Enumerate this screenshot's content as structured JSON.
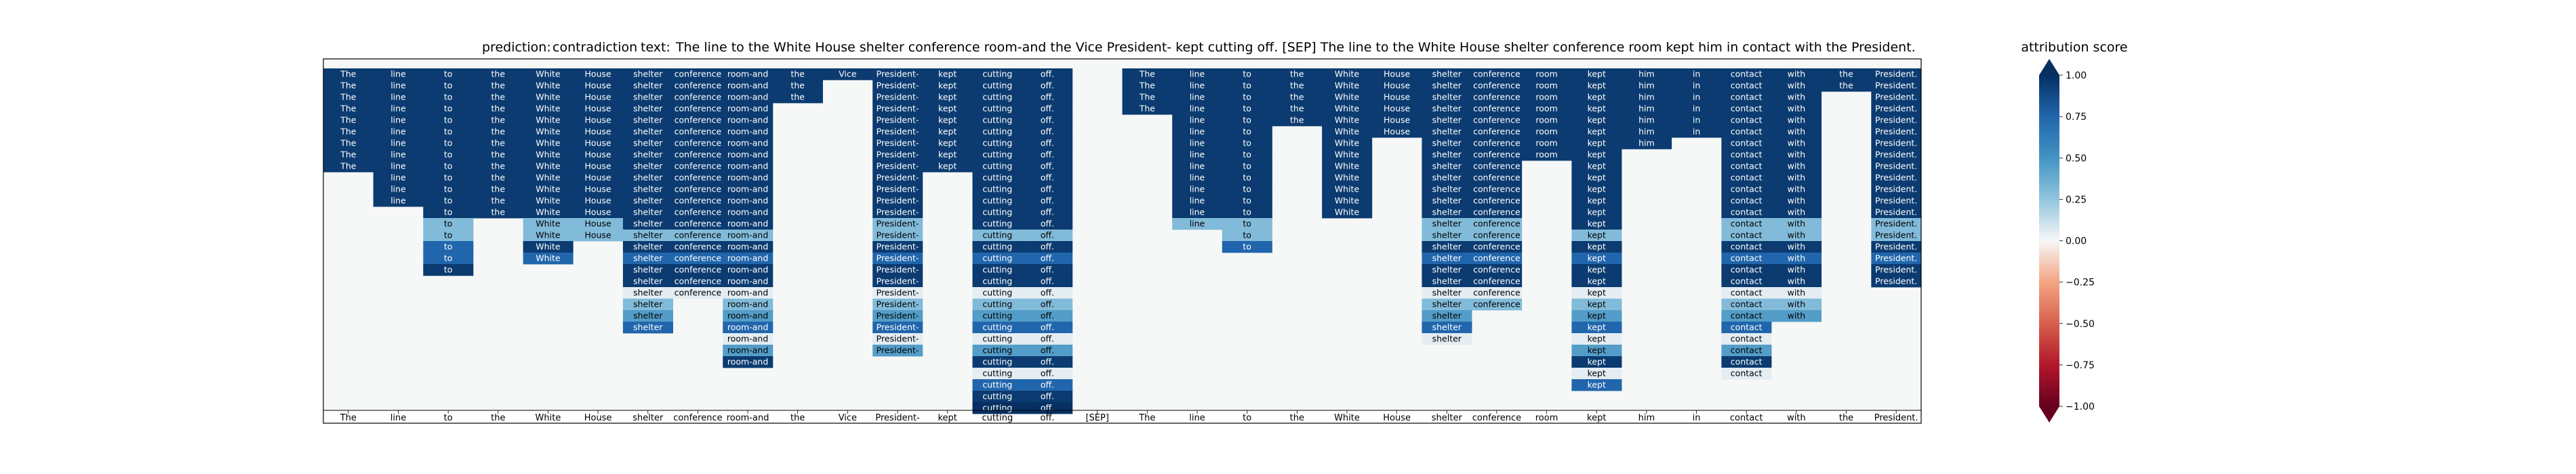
{
  "chart_data": {
    "type": "heatmap",
    "title": {
      "prediction_label": "prediction:",
      "prediction_value": "contradiction",
      "text_label": "text:",
      "text_value": "The line to the White House shelter conference room-and the Vice President- kept cutting off. [SEP] The line to the White House shelter conference room kept him in contact with the President."
    },
    "tokens": [
      "The",
      "line",
      "to",
      "the",
      "White",
      "House",
      "shelter",
      "conference",
      "room-and",
      "the",
      "Vice",
      "President-",
      "kept",
      "cutting",
      "off.",
      "[SEP]",
      "The",
      "line",
      "to",
      "the",
      "White",
      "House",
      "shelter",
      "conference",
      "room",
      "kept",
      "him",
      "in",
      "contact",
      "with",
      "the",
      "President."
    ],
    "matrix": [
      [
        0.95,
        0.95,
        0.95,
        0.95,
        0.95,
        0.95,
        0.95,
        0.95,
        0.95,
        0.95,
        0.95,
        0.95,
        0.95,
        0.95,
        0.95,
        null,
        0.95,
        0.95,
        0.95,
        0.95,
        0.95,
        0.95,
        0.95,
        0.95,
        0.95,
        0.95,
        0.95,
        0.95,
        0.95,
        0.95,
        0.95,
        0.95
      ],
      [
        0.95,
        0.95,
        0.95,
        0.95,
        0.95,
        0.95,
        0.95,
        0.95,
        0.95,
        0.95,
        null,
        0.95,
        0.95,
        0.95,
        0.95,
        null,
        0.95,
        0.95,
        0.95,
        0.95,
        0.95,
        0.95,
        0.95,
        0.95,
        0.95,
        0.95,
        0.95,
        0.95,
        0.95,
        0.95,
        0.95,
        0.95
      ],
      [
        0.95,
        0.95,
        0.95,
        0.95,
        0.95,
        0.95,
        0.95,
        0.95,
        0.95,
        0.95,
        null,
        0.95,
        0.95,
        0.95,
        0.95,
        null,
        0.95,
        0.95,
        0.95,
        0.95,
        0.95,
        0.95,
        0.95,
        0.95,
        0.95,
        0.95,
        0.95,
        0.95,
        0.95,
        0.95,
        null,
        0.95
      ],
      [
        0.95,
        0.95,
        0.95,
        0.95,
        0.95,
        0.95,
        0.95,
        0.95,
        0.95,
        null,
        null,
        0.95,
        0.95,
        0.95,
        0.95,
        null,
        0.95,
        0.95,
        0.95,
        0.95,
        0.95,
        0.95,
        0.95,
        0.95,
        0.95,
        0.95,
        0.95,
        0.95,
        0.95,
        0.95,
        null,
        0.95
      ],
      [
        0.95,
        0.95,
        0.95,
        0.95,
        0.95,
        0.95,
        0.95,
        0.95,
        0.95,
        null,
        null,
        0.95,
        0.95,
        0.95,
        0.95,
        null,
        null,
        0.95,
        0.95,
        0.95,
        0.95,
        0.95,
        0.95,
        0.95,
        0.95,
        0.95,
        0.95,
        0.95,
        0.95,
        0.95,
        null,
        0.95
      ],
      [
        0.95,
        0.95,
        0.95,
        0.95,
        0.95,
        0.95,
        0.95,
        0.95,
        0.95,
        null,
        null,
        0.95,
        0.95,
        0.95,
        0.95,
        null,
        null,
        0.95,
        0.95,
        null,
        0.95,
        0.95,
        0.95,
        0.95,
        0.95,
        0.95,
        0.95,
        0.95,
        0.95,
        0.95,
        null,
        0.95
      ],
      [
        0.95,
        0.95,
        0.95,
        0.95,
        0.95,
        0.95,
        0.95,
        0.95,
        0.95,
        null,
        null,
        0.95,
        0.95,
        0.95,
        0.95,
        null,
        null,
        0.95,
        0.95,
        null,
        0.95,
        null,
        0.95,
        0.95,
        0.95,
        0.95,
        0.95,
        null,
        0.95,
        0.95,
        null,
        0.95
      ],
      [
        0.95,
        0.95,
        0.95,
        0.95,
        0.95,
        0.95,
        0.95,
        0.95,
        0.95,
        null,
        null,
        0.95,
        0.95,
        0.95,
        0.95,
        null,
        null,
        0.95,
        0.95,
        null,
        0.95,
        null,
        0.95,
        0.95,
        0.95,
        0.95,
        null,
        null,
        0.95,
        0.95,
        null,
        0.95
      ],
      [
        0.95,
        0.95,
        0.95,
        0.95,
        0.95,
        0.95,
        0.95,
        0.95,
        0.95,
        null,
        null,
        0.95,
        0.95,
        0.95,
        0.95,
        null,
        null,
        0.95,
        0.95,
        null,
        0.95,
        null,
        0.95,
        0.95,
        null,
        0.95,
        null,
        null,
        0.95,
        0.95,
        null,
        0.95
      ],
      [
        null,
        0.95,
        0.95,
        0.95,
        0.95,
        0.95,
        0.95,
        0.95,
        0.95,
        null,
        null,
        0.95,
        null,
        0.95,
        0.95,
        null,
        null,
        0.95,
        0.95,
        null,
        0.95,
        null,
        0.95,
        0.95,
        null,
        0.95,
        null,
        null,
        0.95,
        0.95,
        null,
        0.95
      ],
      [
        null,
        0.95,
        0.95,
        0.95,
        0.95,
        0.95,
        0.95,
        0.95,
        0.95,
        null,
        null,
        0.95,
        null,
        0.95,
        0.95,
        null,
        null,
        0.95,
        0.95,
        null,
        0.95,
        null,
        0.95,
        0.95,
        null,
        0.95,
        null,
        null,
        0.95,
        0.95,
        null,
        0.95
      ],
      [
        null,
        0.95,
        0.95,
        0.95,
        0.95,
        0.95,
        0.95,
        0.95,
        0.95,
        null,
        null,
        0.95,
        null,
        0.95,
        0.95,
        null,
        null,
        0.95,
        0.95,
        null,
        0.95,
        null,
        0.95,
        0.95,
        null,
        0.95,
        null,
        null,
        0.95,
        0.95,
        null,
        0.95
      ],
      [
        null,
        null,
        0.95,
        0.95,
        0.95,
        0.95,
        0.95,
        0.95,
        0.95,
        null,
        null,
        0.95,
        null,
        0.95,
        0.95,
        null,
        null,
        0.95,
        0.95,
        null,
        0.95,
        null,
        0.95,
        0.95,
        null,
        0.95,
        null,
        null,
        0.95,
        0.95,
        null,
        0.95
      ],
      [
        null,
        null,
        0.3,
        null,
        0.3,
        0.3,
        0.95,
        0.95,
        0.95,
        null,
        null,
        0.3,
        null,
        0.95,
        0.95,
        null,
        null,
        0.3,
        0.3,
        null,
        null,
        null,
        0.3,
        0.3,
        null,
        0.95,
        null,
        null,
        0.3,
        0.3,
        null,
        0.3
      ],
      [
        null,
        null,
        0.3,
        null,
        0.3,
        0.3,
        0.3,
        0.3,
        0.3,
        null,
        null,
        0.3,
        null,
        0.3,
        0.3,
        null,
        null,
        null,
        0.3,
        null,
        null,
        null,
        0.3,
        0.3,
        null,
        0.3,
        null,
        null,
        0.3,
        0.3,
        null,
        0.3
      ],
      [
        null,
        null,
        0.75,
        null,
        0.95,
        null,
        0.95,
        0.95,
        0.95,
        null,
        null,
        0.95,
        null,
        0.95,
        0.95,
        null,
        null,
        null,
        0.75,
        null,
        null,
        null,
        0.95,
        0.95,
        null,
        0.95,
        null,
        null,
        0.95,
        0.95,
        null,
        0.95
      ],
      [
        null,
        null,
        0.75,
        null,
        0.75,
        null,
        0.75,
        0.75,
        0.75,
        null,
        null,
        0.75,
        null,
        0.75,
        0.75,
        null,
        null,
        null,
        null,
        null,
        null,
        null,
        0.75,
        0.75,
        null,
        0.75,
        null,
        null,
        0.75,
        0.75,
        null,
        0.75
      ],
      [
        null,
        null,
        0.95,
        null,
        null,
        null,
        0.95,
        0.95,
        0.95,
        null,
        null,
        0.95,
        null,
        0.95,
        0.95,
        null,
        null,
        null,
        null,
        null,
        null,
        null,
        0.95,
        0.95,
        null,
        0.95,
        null,
        null,
        0.95,
        0.95,
        null,
        0.95
      ],
      [
        null,
        null,
        null,
        null,
        null,
        null,
        0.95,
        0.95,
        0.95,
        null,
        null,
        0.95,
        null,
        0.95,
        0.95,
        null,
        null,
        null,
        null,
        null,
        null,
        null,
        0.95,
        0.95,
        null,
        0.95,
        null,
        null,
        0.95,
        0.95,
        null,
        0.95
      ],
      [
        null,
        null,
        null,
        null,
        null,
        null,
        0.05,
        0.05,
        0.05,
        null,
        null,
        0.05,
        null,
        0.05,
        0.05,
        null,
        null,
        null,
        null,
        null,
        null,
        null,
        0.05,
        0.05,
        null,
        0.05,
        null,
        null,
        0.05,
        0.05,
        null,
        null
      ],
      [
        null,
        null,
        null,
        null,
        null,
        null,
        0.3,
        null,
        0.3,
        null,
        null,
        0.3,
        null,
        0.3,
        0.3,
        null,
        null,
        null,
        null,
        null,
        null,
        null,
        0.3,
        0.3,
        null,
        0.3,
        null,
        null,
        0.3,
        0.3,
        null,
        null
      ],
      [
        null,
        null,
        null,
        null,
        null,
        null,
        0.45,
        null,
        0.45,
        null,
        null,
        0.45,
        null,
        0.45,
        0.45,
        null,
        null,
        null,
        null,
        null,
        null,
        null,
        0.45,
        null,
        null,
        0.45,
        null,
        null,
        0.45,
        0.45,
        null,
        null
      ],
      [
        null,
        null,
        null,
        null,
        null,
        null,
        0.75,
        null,
        0.75,
        null,
        null,
        0.75,
        null,
        0.75,
        0.75,
        null,
        null,
        null,
        null,
        null,
        null,
        null,
        0.75,
        null,
        null,
        0.75,
        null,
        null,
        0.75,
        null,
        null,
        null
      ],
      [
        null,
        null,
        null,
        null,
        null,
        null,
        null,
        null,
        0.05,
        null,
        null,
        0.05,
        null,
        0.05,
        0.05,
        null,
        null,
        null,
        null,
        null,
        null,
        null,
        0.05,
        null,
        null,
        0.05,
        null,
        null,
        0.05,
        null,
        null,
        null
      ],
      [
        null,
        null,
        null,
        null,
        null,
        null,
        null,
        null,
        0.45,
        null,
        null,
        0.45,
        null,
        0.45,
        0.45,
        null,
        null,
        null,
        null,
        null,
        null,
        null,
        null,
        null,
        null,
        0.45,
        null,
        null,
        0.45,
        null,
        null,
        null
      ],
      [
        null,
        null,
        null,
        null,
        null,
        null,
        null,
        null,
        0.95,
        null,
        null,
        null,
        null,
        0.95,
        0.95,
        null,
        null,
        null,
        null,
        null,
        null,
        null,
        null,
        null,
        null,
        0.95,
        null,
        null,
        0.95,
        null,
        null,
        null
      ],
      [
        null,
        null,
        null,
        null,
        null,
        null,
        null,
        null,
        null,
        null,
        null,
        null,
        null,
        0.05,
        0.05,
        null,
        null,
        null,
        null,
        null,
        null,
        null,
        null,
        null,
        null,
        0.05,
        null,
        null,
        0.05,
        null,
        null,
        null
      ],
      [
        null,
        null,
        null,
        null,
        null,
        null,
        null,
        null,
        null,
        null,
        null,
        null,
        null,
        0.75,
        0.75,
        null,
        null,
        null,
        null,
        null,
        null,
        null,
        null,
        null,
        null,
        0.75,
        null,
        null,
        null,
        null,
        null,
        null
      ],
      [
        null,
        null,
        null,
        null,
        null,
        null,
        null,
        null,
        null,
        null,
        null,
        null,
        null,
        0.95,
        0.95,
        null,
        null,
        null,
        null,
        null,
        null,
        null,
        null,
        null,
        null,
        null,
        null,
        null,
        null,
        null,
        null,
        null
      ],
      [
        null,
        null,
        null,
        null,
        null,
        null,
        null,
        null,
        null,
        null,
        null,
        null,
        null,
        1.0,
        1.0,
        null,
        null,
        null,
        null,
        null,
        null,
        null,
        null,
        null,
        null,
        null,
        null,
        null,
        null,
        null,
        null,
        null
      ]
    ],
    "colorbar": {
      "label": "attribution score",
      "ticks": [
        1.0,
        0.75,
        0.5,
        0.25,
        0.0,
        -0.25,
        -0.5,
        -0.75,
        -1.0
      ],
      "tick_labels": [
        "1.00",
        "0.75",
        "0.50",
        "0.25",
        "0.00",
        "−0.25",
        "−0.50",
        "−0.75",
        "−1.00"
      ],
      "range": [
        -1.0,
        1.0
      ],
      "colormap": "RdBu"
    },
    "colors": {
      "empty_cell": "#f6f8f7",
      "axes_frame": "#000000",
      "light_text": "#ffffff",
      "dark_text": "#000000"
    }
  }
}
